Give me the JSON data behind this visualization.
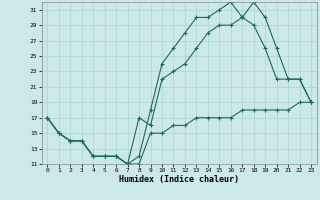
{
  "xlabel": "Humidex (Indice chaleur)",
  "bg_color": "#cce9e9",
  "grid_color": "#aad4d4",
  "line_color": "#1a6b5a",
  "xlim": [
    -0.5,
    23.5
  ],
  "ylim": [
    11,
    32
  ],
  "yticks": [
    11,
    13,
    15,
    17,
    19,
    21,
    23,
    25,
    27,
    29,
    31
  ],
  "xticks": [
    0,
    1,
    2,
    3,
    4,
    5,
    6,
    7,
    8,
    9,
    10,
    11,
    12,
    13,
    14,
    15,
    16,
    17,
    18,
    19,
    20,
    21,
    22,
    23
  ],
  "line1_x": [
    0,
    1,
    2,
    3,
    4,
    5,
    6,
    7,
    8,
    9,
    10,
    11,
    12,
    13,
    14,
    15,
    16,
    17,
    18,
    19,
    20,
    21,
    22,
    23
  ],
  "line1_y": [
    17,
    15,
    14,
    14,
    12,
    12,
    12,
    11,
    11,
    15,
    15,
    16,
    16,
    17,
    17,
    17,
    17,
    18,
    18,
    18,
    18,
    18,
    19,
    19
  ],
  "line2_x": [
    0,
    1,
    2,
    3,
    4,
    5,
    6,
    7,
    8,
    9,
    10,
    11,
    12,
    13,
    14,
    15,
    16,
    17,
    18,
    19,
    20,
    21,
    22,
    23
  ],
  "line2_y": [
    17,
    15,
    14,
    14,
    12,
    12,
    12,
    11,
    17,
    16,
    22,
    23,
    24,
    26,
    28,
    29,
    29,
    30,
    29,
    26,
    22,
    22,
    22,
    19
  ],
  "line3_x": [
    0,
    1,
    2,
    3,
    4,
    5,
    6,
    7,
    8,
    9,
    10,
    11,
    12,
    13,
    14,
    15,
    16,
    17,
    18,
    19,
    20,
    21,
    22,
    23
  ],
  "line3_y": [
    17,
    15,
    14,
    14,
    12,
    12,
    12,
    11,
    12,
    18,
    24,
    26,
    28,
    30,
    30,
    31,
    32,
    30,
    32,
    30,
    26,
    22,
    22,
    19
  ],
  "marker": "+",
  "markersize": 3,
  "linewidth": 0.8
}
